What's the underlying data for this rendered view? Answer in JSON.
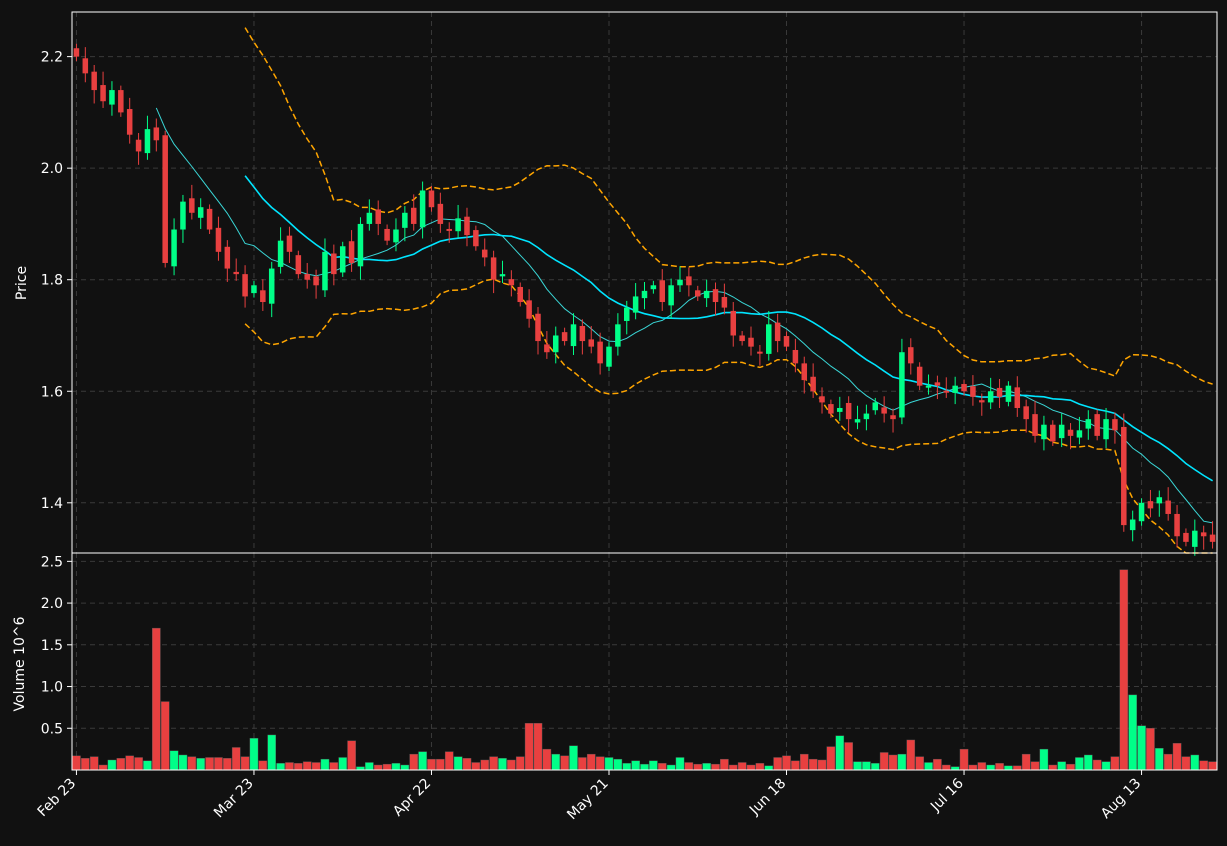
{
  "chart_data": [
    {
      "type": "candlestick",
      "ylabel": "Price",
      "ylim": [
        1.31,
        2.28
      ],
      "y_ticks": [
        1.4,
        1.6,
        1.8,
        2.0,
        2.2
      ],
      "grid": true,
      "colors": {
        "background": "#111111",
        "up": "#00ff88",
        "down": "#e84040",
        "ma_fast": "#3ad6d6",
        "ma_slow": "#00e5ff",
        "bollinger": "#ffa500",
        "grid": "#3a3a3a",
        "axis": "#ffffff"
      },
      "overlays": [
        {
          "name": "",
          "kind": "moving-average-fast"
        },
        {
          "name": "",
          "kind": "moving-average-slow"
        },
        {
          "name": "",
          "kind": "bollinger-upper"
        },
        {
          "name": "",
          "kind": "bollinger-lower"
        }
      ],
      "closes": [
        2.2,
        2.17,
        2.14,
        2.12,
        2.14,
        2.1,
        2.06,
        2.03,
        2.07,
        2.05,
        1.83,
        1.89,
        1.94,
        1.92,
        1.93,
        1.89,
        1.85,
        1.82,
        1.81,
        1.77,
        1.79,
        1.76,
        1.82,
        1.87,
        1.85,
        1.81,
        1.8,
        1.79,
        1.85,
        1.81,
        1.86,
        1.83,
        1.9,
        1.92,
        1.9,
        1.87,
        1.89,
        1.92,
        1.9,
        1.96,
        1.93,
        1.9,
        1.89,
        1.91,
        1.88,
        1.86,
        1.84,
        1.8,
        1.81,
        1.79,
        1.76,
        1.73,
        1.69,
        1.67,
        1.7,
        1.69,
        1.72,
        1.69,
        1.68,
        1.65,
        1.68,
        1.72,
        1.75,
        1.77,
        1.78,
        1.79,
        1.76,
        1.79,
        1.8,
        1.79,
        1.77,
        1.78,
        1.76,
        1.75,
        1.7,
        1.69,
        1.68,
        1.67,
        1.72,
        1.69,
        1.68,
        1.65,
        1.62,
        1.6,
        1.58,
        1.56,
        1.57,
        1.55,
        1.55,
        1.56,
        1.58,
        1.56,
        1.55,
        1.67,
        1.65,
        1.61,
        1.61,
        1.61,
        1.6,
        1.61,
        1.6,
        1.59,
        1.58,
        1.6,
        1.59,
        1.61,
        1.57,
        1.55,
        1.52,
        1.54,
        1.51,
        1.54,
        1.52,
        1.53,
        1.55,
        1.52,
        1.55,
        1.53,
        1.36,
        1.37,
        1.4,
        1.39,
        1.41,
        1.38,
        1.34,
        1.33,
        1.35,
        1.34,
        1.33
      ],
      "volume": {
        "ylabel": "Volume  10^6",
        "ylim": [
          0,
          2.6
        ],
        "y_ticks": [
          0.5,
          1.0,
          1.5,
          2.0,
          2.5
        ],
        "values": [
          0.17,
          0.14,
          0.16,
          0.06,
          0.12,
          0.14,
          0.17,
          0.15,
          0.11,
          1.7,
          0.82,
          0.23,
          0.18,
          0.16,
          0.14,
          0.15,
          0.15,
          0.14,
          0.27,
          0.16,
          0.38,
          0.11,
          0.42,
          0.08,
          0.09,
          0.08,
          0.1,
          0.09,
          0.13,
          0.09,
          0.15,
          0.35,
          0.04,
          0.09,
          0.06,
          0.07,
          0.08,
          0.06,
          0.19,
          0.22,
          0.13,
          0.13,
          0.22,
          0.16,
          0.14,
          0.09,
          0.12,
          0.16,
          0.14,
          0.12,
          0.16,
          0.56,
          0.56,
          0.25,
          0.19,
          0.17,
          0.29,
          0.15,
          0.19,
          0.16,
          0.15,
          0.13,
          0.08,
          0.11,
          0.07,
          0.11,
          0.08,
          0.06,
          0.15,
          0.09,
          0.07,
          0.08,
          0.07,
          0.13,
          0.06,
          0.09,
          0.06,
          0.08,
          0.05,
          0.15,
          0.17,
          0.11,
          0.19,
          0.13,
          0.12,
          0.28,
          0.41,
          0.33,
          0.1,
          0.1,
          0.08,
          0.21,
          0.18,
          0.19,
          0.36,
          0.16,
          0.09,
          0.13,
          0.06,
          0.04,
          0.25,
          0.06,
          0.09,
          0.06,
          0.08,
          0.05,
          0.05,
          0.19,
          0.1,
          0.25,
          0.06,
          0.1,
          0.07,
          0.15,
          0.18,
          0.12,
          0.1,
          0.16,
          2.4,
          0.9,
          0.53,
          0.5,
          0.26,
          0.19,
          0.32,
          0.16,
          0.18,
          0.11,
          0.1
        ]
      },
      "x_tick_labels": [
        "Feb 23",
        "Mar 23",
        "Apr 22",
        "May 21",
        "Jun 18",
        "Jul 16",
        "Aug 13"
      ]
    }
  ]
}
